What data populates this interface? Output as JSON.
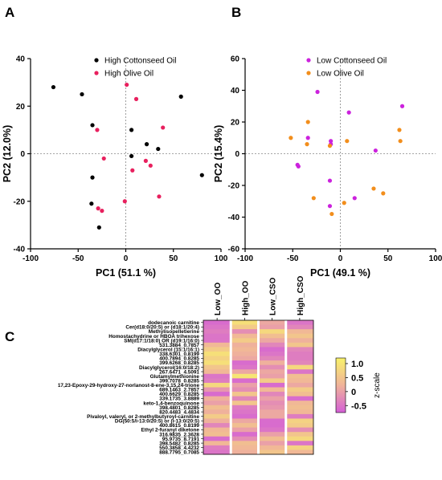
{
  "panels": {
    "a": "A",
    "b": "B",
    "c": "C"
  },
  "colors": {
    "high_cottonseed": "#000000",
    "high_olive": "#e8205e",
    "low_cottonseed": "#cc22dd",
    "low_olive": "#f28e1c",
    "ref_line": "#888888",
    "heat_low": "#d45fd6",
    "heat_mid": "#f0b39a",
    "heat_high": "#f8f26a"
  },
  "chart_data": [
    {
      "type": "scatter",
      "panel": "A",
      "xlabel": "PC1 (51.1 %)",
      "ylabel": "PC2 (12.0%)",
      "xlim": [
        -100,
        100
      ],
      "ylim": [
        -40,
        40
      ],
      "xticks": [
        -100,
        -50,
        0,
        50,
        100
      ],
      "yticks": [
        -40,
        -20,
        0,
        20,
        40
      ],
      "legend_position": "top-left",
      "series": [
        {
          "name": "High Cottonseed Oil",
          "color": "#000000",
          "points": [
            [
              -76,
              28
            ],
            [
              -46,
              25
            ],
            [
              -35,
              12
            ],
            [
              -35,
              -10
            ],
            [
              -36,
              -21
            ],
            [
              -28,
              -31
            ],
            [
              6,
              10
            ],
            [
              6,
              -1
            ],
            [
              22,
              4
            ],
            [
              34,
              2
            ],
            [
              58,
              24
            ],
            [
              80,
              -9
            ]
          ]
        },
        {
          "name": "High Olive Oil",
          "color": "#e8205e",
          "points": [
            [
              -30,
              10
            ],
            [
              -23,
              -2
            ],
            [
              -29,
              -23
            ],
            [
              -25,
              -24
            ],
            [
              1,
              29
            ],
            [
              11,
              23
            ],
            [
              7,
              -7
            ],
            [
              21,
              -3
            ],
            [
              26,
              -5
            ],
            [
              39,
              11
            ],
            [
              35,
              -18
            ],
            [
              -1,
              -20
            ]
          ]
        }
      ]
    },
    {
      "type": "scatter",
      "panel": "B",
      "xlabel": "PC1 (49.1 %)",
      "ylabel": "PC2 (15.4%)",
      "xlim": [
        -100,
        100
      ],
      "ylim": [
        -60,
        60
      ],
      "xticks": [
        -100,
        -50,
        0,
        50,
        100
      ],
      "yticks": [
        -60,
        -40,
        -20,
        0,
        20,
        40,
        60
      ],
      "legend_position": "top-left",
      "series": [
        {
          "name": "Low Cottonseed Oil",
          "color": "#cc22dd",
          "points": [
            [
              -24,
              39
            ],
            [
              -34,
              10
            ],
            [
              -10,
              8
            ],
            [
              -10,
              6
            ],
            [
              -45,
              -7
            ],
            [
              -11,
              -17
            ],
            [
              9,
              26
            ],
            [
              65,
              30
            ],
            [
              37,
              2
            ],
            [
              15,
              -28
            ],
            [
              -11,
              -33
            ],
            [
              -44,
              -8
            ]
          ]
        },
        {
          "name": "Low Olive Oil",
          "color": "#f28e1c",
          "points": [
            [
              -34,
              20
            ],
            [
              -52,
              10
            ],
            [
              -35,
              6
            ],
            [
              -11,
              5
            ],
            [
              7,
              8
            ],
            [
              62,
              15
            ],
            [
              63,
              8
            ],
            [
              35,
              -22
            ],
            [
              45,
              -25
            ],
            [
              4,
              -31
            ],
            [
              -9,
              -38
            ],
            [
              -28,
              -28
            ]
          ]
        }
      ]
    },
    {
      "type": "heatmap",
      "panel": "C",
      "columns": [
        "Low_OO",
        "High_OO",
        "Low_CSO",
        "High_CSO"
      ],
      "rows": [
        "dodecanoic carnitine",
        "Cer(d18:0/20:5) or (d18:1/20:4)",
        "Methylisopelletierine",
        "Homostachydrine or HBOA trihexose",
        "SM(d17:1/18:0) OR (d19:1/16:0)",
        "531.3884_0.7857",
        "Diacylglycerol (15:1/16:1)",
        "338.6301_0.8199",
        "400.7894_0.8285",
        "399.6268_0.8285",
        "Diacylglycerol(16:0/18:2)",
        "267.6471_4.5091",
        "Glutamylmethionine",
        "399.7078_0.8285",
        "17,23-Epoxy-29-hydroxy-27-norlanost-8-ene-3,15,24-trione",
        "689.1463_2.7857",
        "400.6629_0.8285",
        "339.1735_3.8889",
        "keto-1,4-benzoquinone",
        "398.4801_0.8285",
        "820.4483_4.4834",
        "Pivaloyl, valeryl, or 2-methylbutyroyl-carnitine",
        "DG(50:5/i-13:0/20:5) or (i-13:0/20:5)",
        "400.8615_0.8199",
        "Ethyl 2-furanyl diketone",
        "316.9835_2.3628",
        "95.9735_8.7191",
        "398.5482_0.8285",
        "550.3858_4.4232",
        "888.7795_0.7085"
      ],
      "values": [
        [
          -0.6,
          0.9,
          0.1,
          -0.5
        ],
        [
          -0.5,
          0.6,
          0.0,
          -0.3
        ],
        [
          -0.4,
          -0.2,
          0.8,
          0.3
        ],
        [
          -0.5,
          0.3,
          0.4,
          0.5
        ],
        [
          -0.5,
          0.6,
          0.1,
          0.2
        ],
        [
          0.3,
          0.2,
          -0.3,
          0.5
        ],
        [
          0.6,
          0.3,
          -0.6,
          -0.3
        ],
        [
          0.9,
          0.2,
          -0.5,
          -0.4
        ],
        [
          0.7,
          0.1,
          -0.3,
          -0.4
        ],
        [
          0.9,
          -0.6,
          0.2,
          -0.3
        ],
        [
          0.5,
          -0.5,
          -0.2,
          0.8
        ],
        [
          0.3,
          0.1,
          0.1,
          -0.5
        ],
        [
          -0.5,
          1.0,
          0.0,
          0.4
        ],
        [
          -0.4,
          -0.6,
          0.6,
          0.3
        ],
        [
          0.8,
          0.0,
          -0.6,
          0.1
        ],
        [
          -0.1,
          -0.2,
          0.3,
          0.6
        ],
        [
          -0.6,
          0.5,
          -0.3,
          0.4
        ],
        [
          0.2,
          -0.3,
          0.0,
          -0.6
        ],
        [
          0.0,
          0.5,
          -0.2,
          0.3
        ],
        [
          0.4,
          -0.4,
          -0.1,
          0.4
        ],
        [
          0.2,
          -0.5,
          0.1,
          0.3
        ],
        [
          0.6,
          -0.6,
          0.1,
          -0.4
        ],
        [
          0.2,
          0.1,
          -0.6,
          0.7
        ],
        [
          -0.3,
          0.4,
          -0.6,
          0.6
        ],
        [
          0.3,
          0.0,
          -0.5,
          -0.2
        ],
        [
          0.4,
          -0.6,
          0.0,
          0.5
        ],
        [
          -0.6,
          -0.2,
          0.4,
          0.8
        ],
        [
          0.3,
          0.4,
          0.0,
          -0.5
        ],
        [
          -0.4,
          0.3,
          0.3,
          0.7
        ],
        [
          -0.5,
          0.2,
          0.5,
          0.3
        ]
      ],
      "colorbar": {
        "label": "z-scale",
        "ticks": [
          "1.0",
          "0.5",
          "0",
          "-0.5"
        ],
        "tick_values": [
          1.0,
          0.5,
          0,
          -0.5
        ],
        "range": [
          -0.75,
          1.2
        ]
      }
    }
  ]
}
